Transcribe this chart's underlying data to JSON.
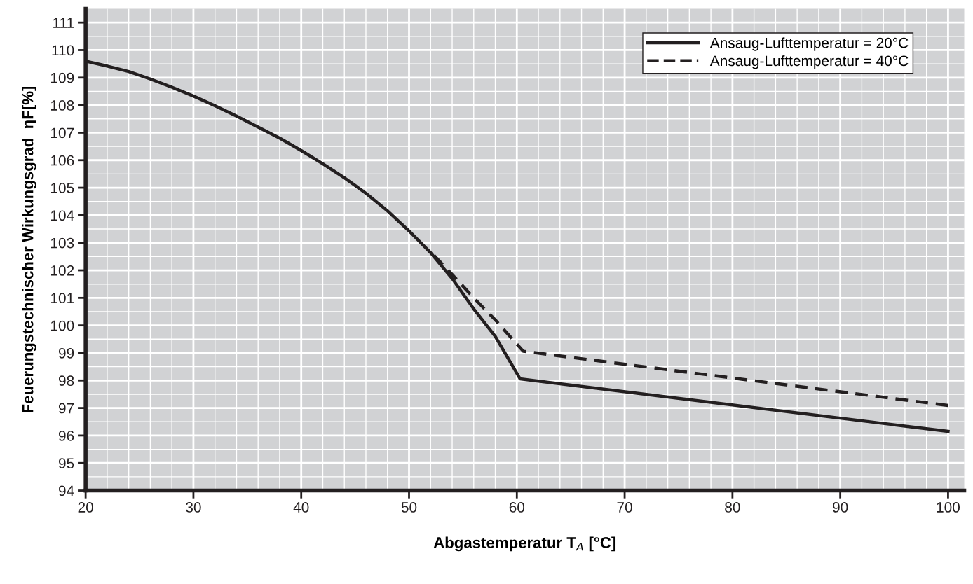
{
  "chart_data": {
    "type": "line",
    "xlabel": "Abgastemperatur T$_{A}$ [°C]",
    "ylabel": "Feuerungstechnischer Wirkungsgrad  ηF[%]",
    "xlim": [
      20,
      101.5
    ],
    "ylim": [
      94,
      111.5
    ],
    "xticks": [
      20,
      30,
      40,
      50,
      60,
      70,
      80,
      90,
      100
    ],
    "yticks": [
      94,
      95,
      96,
      97,
      98,
      99,
      100,
      101,
      102,
      103,
      104,
      105,
      106,
      107,
      108,
      109,
      110,
      111
    ],
    "grid": true,
    "legend": "top right",
    "marker": "none",
    "series": [
      {
        "name": "Ansaug-Lufttemperatur = 20°C",
        "color": "#231f20",
        "line_style": "solid",
        "x": [
          20,
          22,
          24,
          26,
          28,
          30,
          32,
          34,
          36,
          38,
          40,
          42,
          44,
          46,
          48,
          50,
          52,
          54,
          56,
          58,
          60.3,
          100
        ],
        "values": [
          109.6,
          109.42,
          109.22,
          108.95,
          108.65,
          108.33,
          107.98,
          107.6,
          107.2,
          106.8,
          106.35,
          105.87,
          105.36,
          104.8,
          104.16,
          103.43,
          102.64,
          101.7,
          100.6,
          99.6,
          98.06,
          96.15
        ]
      },
      {
        "name": "Ansaug-Lufttemperatur = 40°C",
        "color": "#231f20",
        "line_style": "dashed",
        "x": [
          52.3,
          54,
          56,
          58,
          60.6,
          100
        ],
        "values": [
          102.55,
          101.85,
          101.0,
          100.2,
          99.06,
          97.09
        ]
      }
    ]
  }
}
